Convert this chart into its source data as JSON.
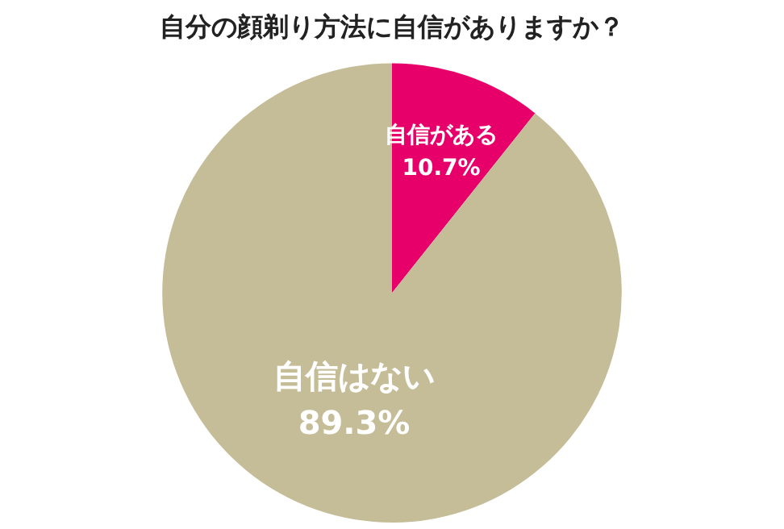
{
  "chart_data": {
    "type": "pie",
    "title": "自分の顔剃り方法に自信がありますか？",
    "categories": [
      "自信がある",
      "自信はない"
    ],
    "values": [
      10.7,
      89.3
    ],
    "value_labels": [
      "10.7%",
      "89.3%"
    ],
    "colors": [
      "#e8006a",
      "#c5bd98"
    ],
    "legend": false
  }
}
